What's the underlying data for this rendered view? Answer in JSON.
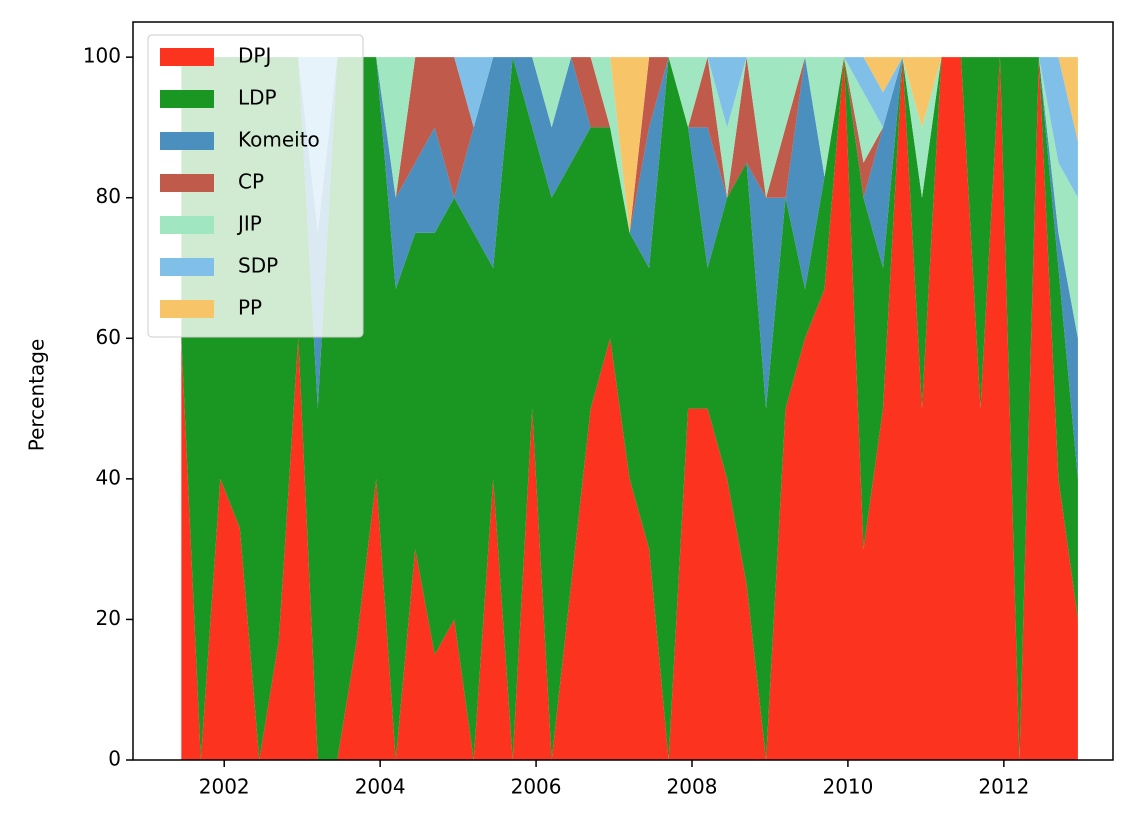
{
  "chart_data": {
    "type": "stackplot",
    "ylabel": "Percentage",
    "x": [
      2001.45,
      2001.7,
      2001.95,
      2002.2,
      2002.45,
      2002.7,
      2002.95,
      2003.2,
      2003.45,
      2003.7,
      2003.95,
      2004.2,
      2004.45,
      2004.7,
      2004.95,
      2005.2,
      2005.45,
      2005.7,
      2005.95,
      2006.2,
      2006.45,
      2006.7,
      2006.95,
      2007.2,
      2007.45,
      2007.7,
      2007.95,
      2008.2,
      2008.45,
      2008.7,
      2008.95,
      2009.2,
      2009.45,
      2009.7,
      2009.95,
      2010.2,
      2010.45,
      2010.7,
      2010.95,
      2011.2,
      2011.45,
      2011.7,
      2011.95,
      2012.2,
      2012.45,
      2012.7,
      2012.95
    ],
    "series": [
      {
        "name": "DPJ",
        "color": "#fc341f",
        "values": [
          60,
          0,
          40,
          33,
          0,
          17,
          60,
          0,
          0,
          17,
          40,
          0,
          30,
          15,
          20,
          0,
          40,
          0,
          50,
          0,
          25,
          50,
          60,
          40,
          30,
          0,
          50,
          50,
          40,
          25,
          0,
          50,
          60,
          67,
          100,
          30,
          50,
          100,
          50,
          100,
          100,
          50,
          100,
          0,
          100,
          40,
          20
        ]
      },
      {
        "name": "LDP",
        "color": "#1a9622",
        "values": [
          40,
          100,
          60,
          67,
          100,
          83,
          40,
          50,
          100,
          83,
          60,
          67,
          45,
          60,
          60,
          75,
          30,
          100,
          40,
          80,
          60,
          40,
          30,
          35,
          40,
          100,
          40,
          20,
          40,
          60,
          50,
          30,
          7,
          16,
          0,
          50,
          20,
          0,
          30,
          0,
          0,
          50,
          0,
          100,
          0,
          30,
          20
        ]
      },
      {
        "name": "Komeito",
        "color": "#4a8fbd",
        "values": [
          0,
          0,
          0,
          0,
          0,
          0,
          0,
          25,
          0,
          0,
          0,
          13,
          10,
          15,
          0,
          15,
          30,
          0,
          10,
          10,
          15,
          0,
          0,
          0,
          20,
          0,
          0,
          20,
          0,
          0,
          30,
          0,
          33,
          0,
          0,
          0,
          20,
          0,
          0,
          0,
          0,
          0,
          0,
          0,
          0,
          5,
          20
        ]
      },
      {
        "name": "CP",
        "color": "#c05a4a",
        "values": [
          0,
          0,
          0,
          0,
          0,
          0,
          0,
          0,
          0,
          0,
          0,
          0,
          15,
          10,
          20,
          0,
          0,
          0,
          0,
          0,
          0,
          10,
          0,
          0,
          10,
          0,
          0,
          10,
          0,
          15,
          0,
          10,
          0,
          0,
          0,
          5,
          0,
          0,
          0,
          0,
          0,
          0,
          0,
          0,
          0,
          0,
          0
        ]
      },
      {
        "name": "JIP",
        "color": "#a0e6c0",
        "values": [
          0,
          0,
          0,
          0,
          0,
          0,
          0,
          0,
          0,
          0,
          0,
          20,
          0,
          0,
          0,
          0,
          0,
          0,
          0,
          10,
          0,
          0,
          10,
          0,
          0,
          0,
          10,
          0,
          10,
          0,
          20,
          10,
          0,
          17,
          0,
          10,
          0,
          0,
          10,
          0,
          0,
          0,
          0,
          0,
          0,
          10,
          20
        ]
      },
      {
        "name": "SDP",
        "color": "#80c0e8",
        "values": [
          0,
          0,
          0,
          0,
          0,
          0,
          0,
          25,
          0,
          0,
          0,
          0,
          0,
          0,
          0,
          10,
          0,
          0,
          0,
          0,
          0,
          0,
          0,
          0,
          0,
          0,
          0,
          0,
          10,
          0,
          0,
          0,
          0,
          0,
          0,
          5,
          5,
          0,
          0,
          0,
          0,
          0,
          0,
          0,
          0,
          15,
          8
        ]
      },
      {
        "name": "PP",
        "color": "#f8c468",
        "values": [
          0,
          0,
          0,
          0,
          0,
          0,
          0,
          0,
          0,
          0,
          0,
          0,
          0,
          0,
          0,
          0,
          0,
          0,
          0,
          0,
          0,
          0,
          0,
          25,
          0,
          0,
          0,
          0,
          0,
          0,
          0,
          0,
          0,
          0,
          0,
          0,
          5,
          0,
          10,
          0,
          0,
          0,
          0,
          0,
          0,
          0,
          12
        ]
      }
    ],
    "xlim": [
      2000.83,
      2013.4
    ],
    "ylim": [
      0,
      105
    ],
    "xticks": [
      2002,
      2004,
      2006,
      2008,
      2010,
      2012
    ],
    "yticks": [
      0,
      20,
      40,
      60,
      80,
      100
    ],
    "legend": "upper left"
  }
}
